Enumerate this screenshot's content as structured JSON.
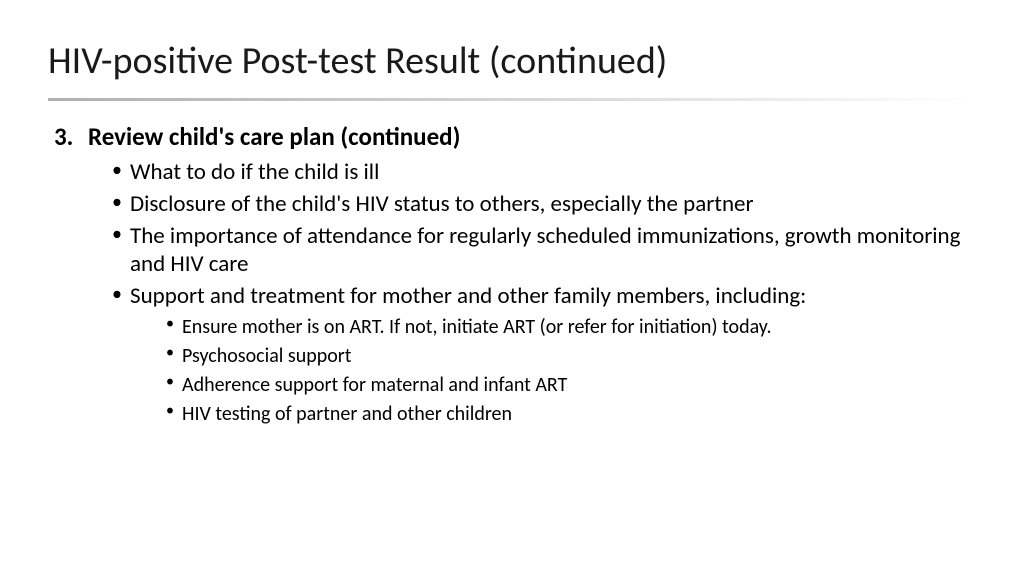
{
  "title": "HIV-positive Post-test Result (continued)",
  "section": {
    "number": "3.",
    "heading": "Review child's care plan (continued)"
  },
  "bullets": [
    "What to do if the child is ill",
    "Disclosure of the child's HIV status to others, especially the partner",
    "The importance of attendance for regularly scheduled immunizations, growth monitoring and HIV care",
    "Support and treatment for mother and other family members, including:"
  ],
  "subbullets": [
    "Ensure mother is on ART.  If not, initiate ART (or refer for initiation) today.",
    "Psychosocial support",
    "Adherence support for maternal and infant ART",
    "HIV testing of partner and other children"
  ],
  "style": {
    "background": "#ffffff",
    "text_color": "#000000",
    "title_fontsize": 38,
    "heading_fontsize": 25,
    "bullet_fontsize": 23,
    "subbullet_fontsize": 20,
    "divider_gradient_from": "#b0b0b0",
    "divider_gradient_to": "#ffffff"
  }
}
